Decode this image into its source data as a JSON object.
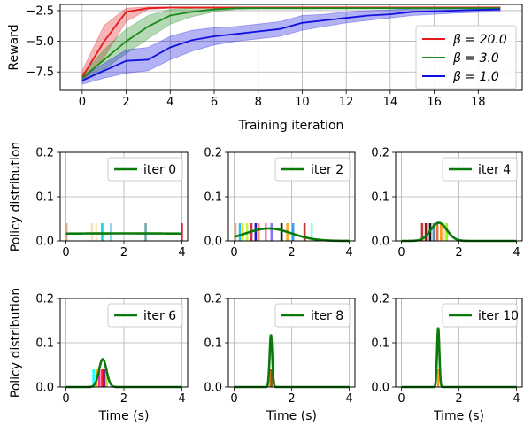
{
  "chart_data": [
    {
      "type": "line",
      "xlabel": "Training iteration",
      "ylabel": "Reward",
      "xlim": [
        -1,
        20
      ],
      "ylim": [
        -9,
        -2
      ],
      "xticks": [
        0,
        2,
        4,
        6,
        8,
        10,
        12,
        14,
        16,
        18
      ],
      "yticks": [
        -2.5,
        -5.0,
        -7.5
      ],
      "ytick_labels": [
        "−2.5",
        "−5.0",
        "−7.5"
      ],
      "grid": true,
      "legend_position": "center-right",
      "series": [
        {
          "name": "β = 20.0",
          "color": "#e41a1c",
          "x": [
            0,
            1,
            2,
            3,
            4,
            5,
            6,
            7,
            8,
            9,
            10,
            11,
            12,
            13,
            14,
            15,
            16,
            17,
            18,
            19
          ],
          "y": [
            -7.9,
            -5.0,
            -2.6,
            -2.3,
            -2.25,
            -2.25,
            -2.25,
            -2.25,
            -2.25,
            -2.25,
            -2.25,
            -2.25,
            -2.25,
            -2.25,
            -2.25,
            -2.25,
            -2.25,
            -2.25,
            -2.25,
            -2.25
          ],
          "lower": [
            -8.3,
            -6.3,
            -3.4,
            -2.4,
            -2.3,
            -2.3,
            -2.3,
            -2.3,
            -2.3,
            -2.3,
            -2.3,
            -2.3,
            -2.3,
            -2.3,
            -2.3,
            -2.3,
            -2.3,
            -2.3,
            -2.3,
            -2.3
          ],
          "upper": [
            -7.4,
            -3.7,
            -2.3,
            -2.2,
            -2.2,
            -2.2,
            -2.2,
            -2.2,
            -2.2,
            -2.2,
            -2.2,
            -2.2,
            -2.2,
            -2.2,
            -2.2,
            -2.2,
            -2.2,
            -2.2,
            -2.2,
            -2.2
          ]
        },
        {
          "name": "β = 3.0",
          "color": "#1a8a1a",
          "x": [
            0,
            1,
            2,
            3,
            4,
            5,
            6,
            7,
            8,
            9,
            10,
            11,
            12,
            13,
            14,
            15,
            16,
            17,
            18,
            19
          ],
          "y": [
            -8.0,
            -6.5,
            -5.0,
            -3.8,
            -2.9,
            -2.6,
            -2.4,
            -2.3,
            -2.3,
            -2.3,
            -2.3,
            -2.3,
            -2.3,
            -2.3,
            -2.3,
            -2.3,
            -2.3,
            -2.3,
            -2.3,
            -2.3
          ],
          "lower": [
            -8.3,
            -7.3,
            -6.0,
            -4.8,
            -3.6,
            -3.0,
            -2.6,
            -2.4,
            -2.35,
            -2.35,
            -2.35,
            -2.35,
            -2.35,
            -2.35,
            -2.35,
            -2.35,
            -2.35,
            -2.35,
            -2.35,
            -2.35
          ],
          "upper": [
            -7.7,
            -5.7,
            -4.0,
            -2.9,
            -2.4,
            -2.3,
            -2.25,
            -2.25,
            -2.25,
            -2.25,
            -2.25,
            -2.25,
            -2.25,
            -2.25,
            -2.25,
            -2.25,
            -2.25,
            -2.25,
            -2.25,
            -2.25
          ]
        },
        {
          "name": "β = 1.0",
          "color": "#1010e0",
          "x": [
            0,
            1,
            2,
            3,
            4,
            5,
            6,
            7,
            8,
            9,
            10,
            11,
            12,
            13,
            14,
            15,
            16,
            17,
            18,
            19
          ],
          "y": [
            -8.2,
            -7.4,
            -6.6,
            -6.5,
            -5.5,
            -4.9,
            -4.6,
            -4.4,
            -4.2,
            -4.0,
            -3.5,
            -3.3,
            -3.1,
            -2.9,
            -2.8,
            -2.6,
            -2.55,
            -2.5,
            -2.45,
            -2.4
          ],
          "lower": [
            -8.5,
            -8.0,
            -7.6,
            -7.4,
            -6.5,
            -5.8,
            -5.3,
            -5.0,
            -4.8,
            -4.6,
            -4.1,
            -3.8,
            -3.5,
            -3.3,
            -3.1,
            -2.9,
            -2.8,
            -2.7,
            -2.65,
            -2.6
          ],
          "upper": [
            -7.9,
            -6.8,
            -5.7,
            -5.5,
            -4.6,
            -4.1,
            -3.9,
            -3.8,
            -3.6,
            -3.4,
            -2.9,
            -2.8,
            -2.6,
            -2.5,
            -2.45,
            -2.35,
            -2.3,
            -2.3,
            -2.25,
            -2.25
          ]
        }
      ]
    },
    {
      "type": "line",
      "title": "",
      "legend": "iter 0",
      "xlabel": "",
      "ylabel": "Policy distribution",
      "xlim": [
        -0.2,
        4.2
      ],
      "ylim": [
        0,
        0.2
      ],
      "xticks": [
        0,
        2,
        4
      ],
      "yticks": [
        0.0,
        0.1,
        0.2
      ],
      "ytick_labels": [
        "0.0",
        "0.1",
        "0.2"
      ],
      "grid": true,
      "curve": {
        "mu": 2.0,
        "sigma": 8.0,
        "peak": 0.017
      },
      "samples": [
        {
          "x": 0.02,
          "color": "#e8a070"
        },
        {
          "x": 0.9,
          "color": "#f5deb3"
        },
        {
          "x": 1.05,
          "color": "#ffe4b5"
        },
        {
          "x": 1.25,
          "color": "#00ced1"
        },
        {
          "x": 1.55,
          "color": "#87ceeb"
        },
        {
          "x": 2.75,
          "color": "#5f9ea0"
        },
        {
          "x": 4.0,
          "color": "#dc143c"
        }
      ]
    },
    {
      "type": "line",
      "legend": "iter 2",
      "xlabel": "",
      "ylabel": "",
      "xlim": [
        -0.2,
        4.2
      ],
      "ylim": [
        0,
        0.2
      ],
      "xticks": [
        0,
        2,
        4
      ],
      "yticks": [
        0.0,
        0.1,
        0.2
      ],
      "ytick_labels": [
        "0.0",
        "0.1",
        "0.2"
      ],
      "grid": true,
      "curve": {
        "mu": 1.2,
        "sigma": 0.8,
        "peak": 0.028
      },
      "samples": [
        {
          "x": 0.05,
          "color": "#f4a460"
        },
        {
          "x": 0.2,
          "color": "#00bfff"
        },
        {
          "x": 0.3,
          "color": "#ffd700"
        },
        {
          "x": 0.45,
          "color": "#adff2f"
        },
        {
          "x": 0.6,
          "color": "#dc143c"
        },
        {
          "x": 0.75,
          "color": "#0000cd"
        },
        {
          "x": 0.85,
          "color": "#ff7f50"
        },
        {
          "x": 1.1,
          "color": "#ff69b4"
        },
        {
          "x": 1.3,
          "color": "#7b68ee"
        },
        {
          "x": 1.65,
          "color": "#000000"
        },
        {
          "x": 1.85,
          "color": "#ffa500"
        },
        {
          "x": 2.05,
          "color": "#1e90ff"
        },
        {
          "x": 2.45,
          "color": "#b22222"
        },
        {
          "x": 2.7,
          "color": "#7fffd4"
        }
      ]
    },
    {
      "type": "line",
      "legend": "iter 4",
      "xlabel": "",
      "ylabel": "",
      "xlim": [
        -0.2,
        4.2
      ],
      "ylim": [
        0,
        0.2
      ],
      "xticks": [
        0,
        2,
        4
      ],
      "yticks": [
        0.0,
        0.1,
        0.2
      ],
      "ytick_labels": [
        "0.0",
        "0.1",
        "0.2"
      ],
      "grid": true,
      "curve": {
        "mu": 1.3,
        "sigma": 0.28,
        "peak": 0.041
      },
      "samples": [
        {
          "x": 0.72,
          "color": "#b22222"
        },
        {
          "x": 0.85,
          "color": "#8b0000"
        },
        {
          "x": 1.0,
          "color": "#000000"
        },
        {
          "x": 1.12,
          "color": "#4682b4"
        },
        {
          "x": 1.25,
          "color": "#d2691e"
        },
        {
          "x": 1.38,
          "color": "#ff8c00"
        },
        {
          "x": 1.5,
          "color": "#ffdab9"
        },
        {
          "x": 1.58,
          "color": "#7cfc00"
        }
      ]
    },
    {
      "type": "line",
      "legend": "iter 6",
      "xlabel": "Time (s)",
      "ylabel": "Policy distribution",
      "xlim": [
        -0.2,
        4.2
      ],
      "ylim": [
        0,
        0.2
      ],
      "xticks": [
        0,
        2,
        4
      ],
      "yticks": [
        0.0,
        0.1,
        0.2
      ],
      "ytick_labels": [
        "0.0",
        "0.1",
        "0.2"
      ],
      "grid": true,
      "curve": {
        "mu": 1.27,
        "sigma": 0.13,
        "peak": 0.063
      },
      "samples": [
        {
          "x": 0.95,
          "color": "#00ffff"
        },
        {
          "x": 1.05,
          "color": "#ffa500"
        },
        {
          "x": 1.15,
          "color": "#ff1493"
        },
        {
          "x": 1.25,
          "color": "#ff0000"
        },
        {
          "x": 1.32,
          "color": "#800080"
        },
        {
          "x": 1.4,
          "color": "#9acd32"
        }
      ]
    },
    {
      "type": "line",
      "legend": "iter 8",
      "xlabel": "Time (s)",
      "ylabel": "",
      "xlim": [
        -0.2,
        4.2
      ],
      "ylim": [
        0,
        0.2
      ],
      "xticks": [
        0,
        2,
        4
      ],
      "yticks": [
        0.0,
        0.1,
        0.2
      ],
      "ytick_labels": [
        "0.0",
        "0.1",
        "0.2"
      ],
      "grid": true,
      "curve": {
        "mu": 1.28,
        "sigma": 0.045,
        "peak": 0.119
      },
      "samples": [
        {
          "x": 1.25,
          "color": "#ff8c00"
        },
        {
          "x": 1.3,
          "color": "#8b4513"
        }
      ]
    },
    {
      "type": "line",
      "legend": "iter 10",
      "xlabel": "Time (s)",
      "ylabel": "",
      "xlim": [
        -0.2,
        4.2
      ],
      "ylim": [
        0,
        0.2
      ],
      "xticks": [
        0,
        2,
        4
      ],
      "yticks": [
        0.0,
        0.1,
        0.2
      ],
      "ytick_labels": [
        "0.0",
        "0.1",
        "0.2"
      ],
      "grid": true,
      "curve": {
        "mu": 1.28,
        "sigma": 0.04,
        "peak": 0.135
      },
      "samples": [
        {
          "x": 1.28,
          "color": "#ff8c00"
        }
      ]
    }
  ]
}
